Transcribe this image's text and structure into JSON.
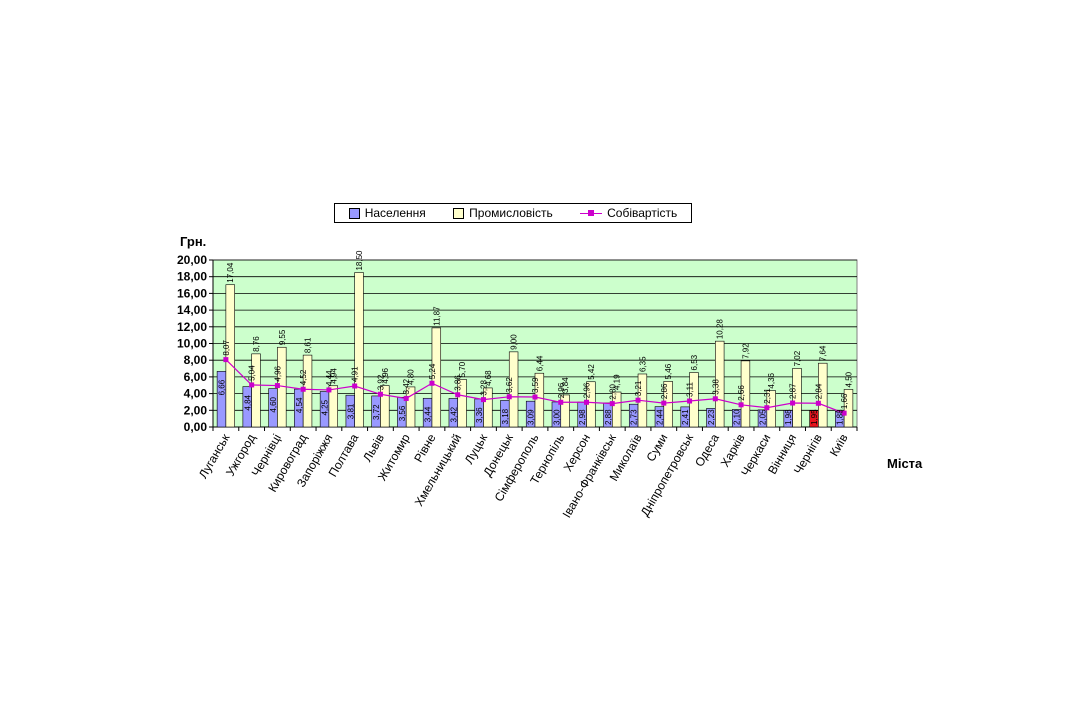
{
  "chart_data": {
    "type": "bar",
    "ylabel": "Грн.",
    "xlabel": "Міста",
    "ylim": [
      0,
      20
    ],
    "ytick_step": 2,
    "ytick_labels": [
      "0,00",
      "2,00",
      "4,00",
      "6,00",
      "8,00",
      "10,00",
      "12,00",
      "14,00",
      "16,00",
      "18,00",
      "20,00"
    ],
    "grid": true,
    "legend_position": "top",
    "categories": [
      "Луганськ",
      "Ужгород",
      "Чернівці",
      "Кировоград",
      "Запоріжжя",
      "Полтава",
      "Львів",
      "Житомир",
      "Рівне",
      "Хмельницький",
      "Луцьк",
      "Донецьк",
      "Сімферополь",
      "Тернопіль",
      "Херсон",
      "Івано-Франківськ",
      "Миколаїв",
      "Суми",
      "Дніпропетровськ",
      "Одеса",
      "Харків",
      "Черкаси",
      "Вінниця",
      "Чернігів",
      "Київ"
    ],
    "series": [
      {
        "name": "Населення",
        "type": "bar",
        "color": "#9999ff",
        "highlight_index": 23,
        "highlight_color": "#e8141e",
        "values": [
          6.66,
          4.84,
          4.6,
          4.54,
          4.25,
          3.81,
          3.72,
          3.56,
          3.44,
          3.42,
          3.36,
          3.18,
          3.09,
          3.0,
          2.98,
          2.88,
          2.73,
          2.44,
          2.41,
          2.23,
          2.1,
          2.05,
          1.98,
          1.95,
          1.88
        ],
        "labels": [
          "6,66",
          "4,84",
          "4,60",
          "4,54",
          "4,25",
          "3,81",
          "3,72",
          "3,56",
          "3,44",
          "3,42",
          "3,36",
          "3,18",
          "3,09",
          "3,00",
          "2,98",
          "2,88",
          "2,73",
          "2,44",
          "2,41",
          "2,23",
          "2,10",
          "2,05",
          "1,98",
          "1,95",
          "1,88"
        ]
      },
      {
        "name": "Промисловість",
        "type": "bar",
        "color": "#ffffcc",
        "values": [
          17.04,
          8.76,
          9.55,
          8.61,
          4.94,
          18.5,
          4.96,
          4.8,
          11.87,
          5.7,
          4.68,
          9.0,
          6.44,
          3.84,
          5.42,
          4.19,
          6.35,
          5.46,
          6.53,
          10.28,
          7.92,
          4.36,
          7.02,
          7.64,
          4.5
        ],
        "labels": [
          "17,04",
          "8,76",
          "9,55",
          "8,61",
          "4,94",
          "18,50",
          "4,96",
          "4,80",
          "11,87",
          "5,70",
          "4,68",
          "9,00",
          "6,44",
          "3,84",
          "5,42",
          "4,19",
          "6,35",
          "5,46",
          "6,53",
          "10,28",
          "7,92",
          "4,36",
          "7,02",
          "7,64",
          "4,50"
        ]
      },
      {
        "name": "Собівартість",
        "type": "line",
        "color": "#cc00cc",
        "values": [
          8.07,
          5.04,
          4.96,
          4.52,
          4.44,
          4.91,
          3.92,
          3.42,
          5.24,
          3.86,
          3.28,
          3.62,
          3.59,
          2.96,
          2.96,
          2.8,
          3.21,
          2.86,
          3.11,
          3.38,
          2.66,
          2.31,
          2.87,
          2.84,
          1.66
        ],
        "labels": [
          "8,07",
          "5,04",
          "4,96",
          "4,52",
          "4,44",
          "4,91",
          "3,92",
          "3,42",
          "5,24",
          "3,86",
          "3,28",
          "3,62",
          "3,59",
          "2,96",
          "2,96",
          "2,80",
          "3,21",
          "2,86",
          "3,11",
          "3,38",
          "2,66",
          "2,31",
          "2,87",
          "2,84",
          "1,66"
        ]
      }
    ]
  },
  "icons": {
    "legend_marker": "square-marker"
  }
}
